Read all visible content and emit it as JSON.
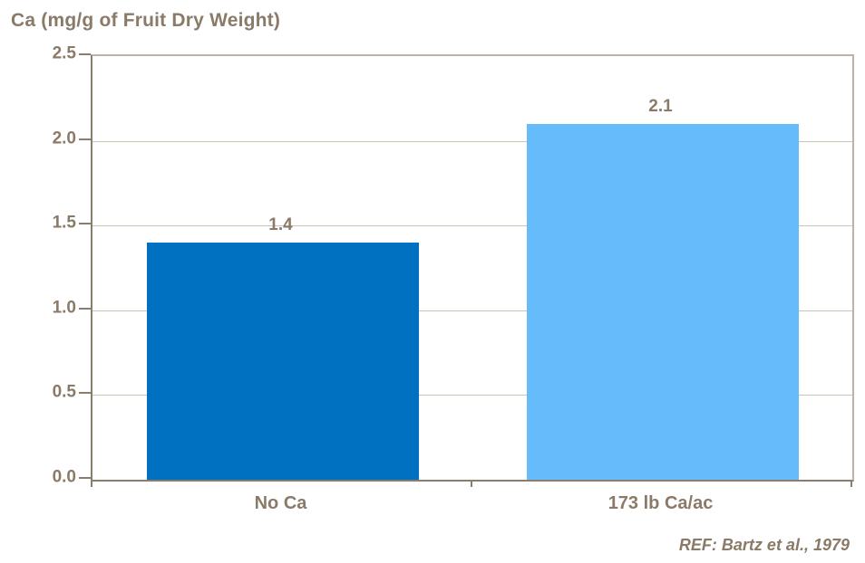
{
  "chart_data": {
    "type": "bar",
    "title": "Ca (mg/g of Fruit Dry Weight)",
    "categories": [
      "No Ca",
      "173 lb Ca/ac"
    ],
    "values": [
      1.4,
      2.1
    ],
    "data_labels": [
      "1.4",
      "2.1"
    ],
    "series_colors": [
      "#0070c0",
      "#66bbfa"
    ],
    "ylim": [
      0.0,
      2.5
    ],
    "ytick_labels": [
      "0.0",
      "0.5",
      "1.0",
      "1.5",
      "2.0",
      "2.5"
    ],
    "grid": "horizontal gridlines at each 0.5 step",
    "legend": "none",
    "annotation": "REF: Bartz et al., 1979",
    "colors": {
      "text": "#8a7a68",
      "axis": "#8b7d6c",
      "plot_border": "#bcb3a8",
      "gridline": "#ccc3b7",
      "background": "#ffffff"
    }
  }
}
